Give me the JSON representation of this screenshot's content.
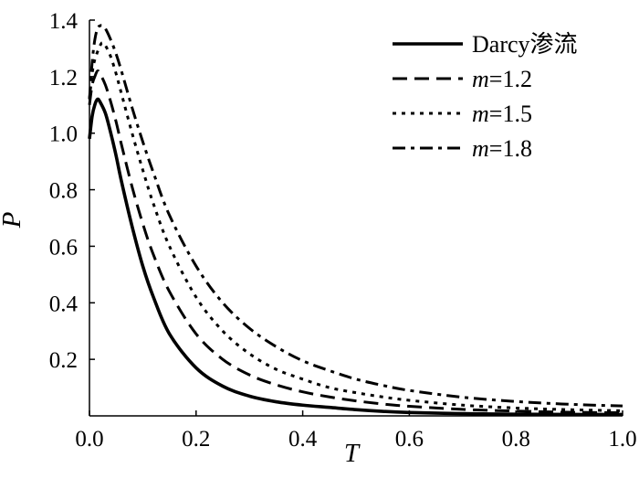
{
  "chart_data": {
    "type": "line",
    "title": "",
    "xlabel": "T",
    "ylabel": "P",
    "xlim": [
      0.0,
      1.0
    ],
    "ylim": [
      0.0,
      1.4
    ],
    "xticks": [
      0.0,
      0.2,
      0.4,
      0.6,
      0.8,
      1.0
    ],
    "xtick_labels": [
      "0.0",
      "0.2",
      "0.4",
      "0.6",
      "0.8",
      "1.0"
    ],
    "yticks": [
      0.2,
      0.4,
      0.6,
      0.8,
      1.0,
      1.2,
      1.4
    ],
    "ytick_labels": [
      "0.2",
      "0.4",
      "0.6",
      "0.8",
      "1.0",
      "1.2",
      "1.4"
    ],
    "grid": false,
    "legend_position": "top-right",
    "series": [
      {
        "name": "Darcy渗流",
        "style": "solid",
        "color": "#000000",
        "x": [
          0.0,
          0.005,
          0.01,
          0.015,
          0.02,
          0.03,
          0.04,
          0.05,
          0.06,
          0.08,
          0.1,
          0.12,
          0.15,
          0.2,
          0.25,
          0.3,
          0.35,
          0.4,
          0.45,
          0.5,
          0.55,
          0.6,
          0.7,
          0.8,
          0.9,
          1.0
        ],
        "y": [
          0.98,
          1.06,
          1.1,
          1.12,
          1.11,
          1.07,
          1.0,
          0.92,
          0.83,
          0.67,
          0.53,
          0.42,
          0.29,
          0.17,
          0.105,
          0.07,
          0.05,
          0.038,
          0.03,
          0.022,
          0.016,
          0.012,
          0.008,
          0.006,
          0.005,
          0.005
        ]
      },
      {
        "name": "m=1.2",
        "name_parts": [
          "m",
          "=1.2"
        ],
        "style": "dashed",
        "color": "#000000",
        "x": [
          0.0,
          0.005,
          0.01,
          0.015,
          0.02,
          0.03,
          0.04,
          0.05,
          0.06,
          0.08,
          0.1,
          0.12,
          0.15,
          0.2,
          0.25,
          0.3,
          0.35,
          0.4,
          0.45,
          0.5,
          0.55,
          0.6,
          0.7,
          0.8,
          0.9,
          1.0
        ],
        "y": [
          1.1,
          1.17,
          1.2,
          1.22,
          1.21,
          1.17,
          1.11,
          1.04,
          0.96,
          0.81,
          0.68,
          0.57,
          0.44,
          0.29,
          0.2,
          0.145,
          0.11,
          0.085,
          0.067,
          0.053,
          0.042,
          0.034,
          0.023,
          0.017,
          0.013,
          0.011
        ]
      },
      {
        "name": "m=1.5",
        "name_parts": [
          "m",
          "=1.5"
        ],
        "style": "dotted",
        "color": "#000000",
        "x": [
          0.0,
          0.005,
          0.01,
          0.02,
          0.025,
          0.03,
          0.04,
          0.05,
          0.06,
          0.08,
          0.1,
          0.12,
          0.15,
          0.2,
          0.25,
          0.3,
          0.35,
          0.4,
          0.45,
          0.5,
          0.55,
          0.6,
          0.7,
          0.8,
          0.9,
          1.0
        ],
        "y": [
          1.12,
          1.21,
          1.26,
          1.31,
          1.32,
          1.31,
          1.27,
          1.21,
          1.14,
          1.0,
          0.87,
          0.75,
          0.6,
          0.42,
          0.3,
          0.22,
          0.165,
          0.13,
          0.1,
          0.082,
          0.067,
          0.055,
          0.038,
          0.028,
          0.022,
          0.018
        ]
      },
      {
        "name": "m=1.8",
        "name_parts": [
          "m",
          "=1.8"
        ],
        "style": "dashdot",
        "color": "#000000",
        "x": [
          0.0,
          0.005,
          0.01,
          0.015,
          0.02,
          0.025,
          0.03,
          0.04,
          0.05,
          0.06,
          0.08,
          0.1,
          0.12,
          0.15,
          0.2,
          0.25,
          0.3,
          0.35,
          0.4,
          0.45,
          0.5,
          0.55,
          0.6,
          0.7,
          0.8,
          0.9,
          1.0
        ],
        "y": [
          1.12,
          1.25,
          1.33,
          1.37,
          1.38,
          1.38,
          1.37,
          1.33,
          1.28,
          1.22,
          1.09,
          0.97,
          0.86,
          0.71,
          0.53,
          0.4,
          0.31,
          0.245,
          0.195,
          0.16,
          0.13,
          0.108,
          0.09,
          0.066,
          0.051,
          0.041,
          0.035
        ]
      }
    ]
  }
}
